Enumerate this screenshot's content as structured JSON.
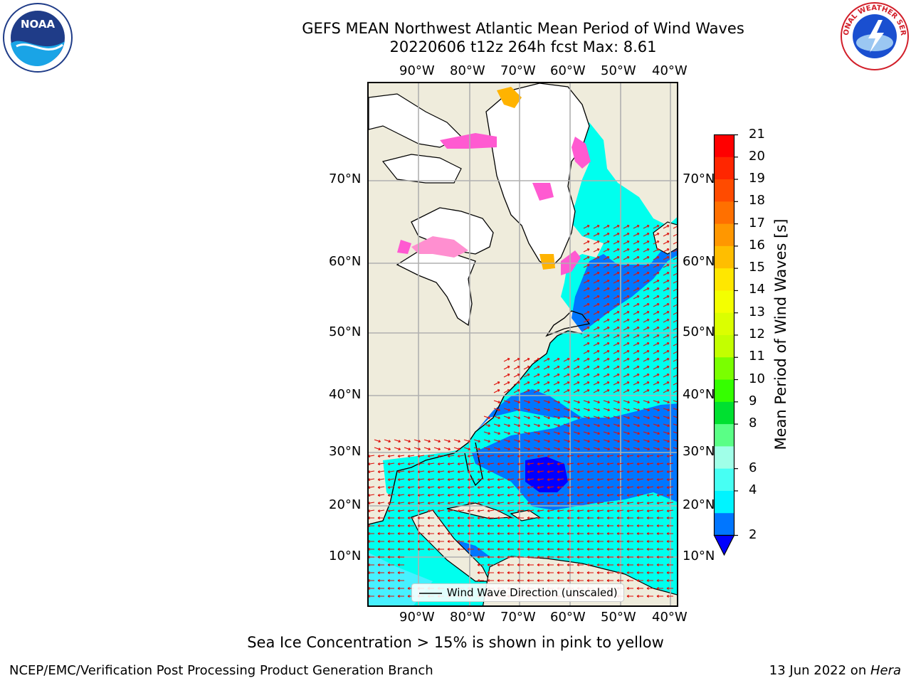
{
  "header": {
    "title_line1": "GEFS MEAN Northwest Atlantic Mean Period of Wind Waves",
    "title_line2": "20220606 t12z 264h fcst   Max: 8.61"
  },
  "logos": {
    "left": "NOAA",
    "right": "NATIONAL WEATHER SERVICE"
  },
  "map": {
    "lon_labels": [
      "90°W",
      "80°W",
      "70°W",
      "60°W",
      "50°W",
      "40°W"
    ],
    "lat_labels": [
      "70°N",
      "60°N",
      "50°N",
      "40°N",
      "30°N",
      "20°N",
      "10°N"
    ],
    "legend_label": "Wind Wave Direction (unscaled)"
  },
  "colorbar": {
    "label": "Mean Period of Wind Waves [s]",
    "ticks": [
      "21",
      "20",
      "19",
      "18",
      "17",
      "16",
      "15",
      "14",
      "13",
      "12",
      "11",
      "10",
      "9",
      "8",
      "6",
      "4",
      "2"
    ],
    "colors": [
      "#ff0000",
      "#ff2600",
      "#ff4b00",
      "#ff7000",
      "#ff9700",
      "#ffbe00",
      "#ffe700",
      "#f4ff00",
      "#dbff00",
      "#c3ff00",
      "#7aff00",
      "#35ff00",
      "#00e030",
      "#5aff86",
      "#a0ffe8",
      "#47fff3",
      "#00f4ff",
      "#0076ff"
    ],
    "under_color": "#0000ff"
  },
  "notes": {
    "sea_ice": "Sea Ice Concentration > 15% is shown in pink to yellow",
    "producer": "NCEP/EMC/Verification Post Processing Product Generation Branch",
    "date": "13 Jun 2022 on ",
    "machine": "Hera"
  }
}
